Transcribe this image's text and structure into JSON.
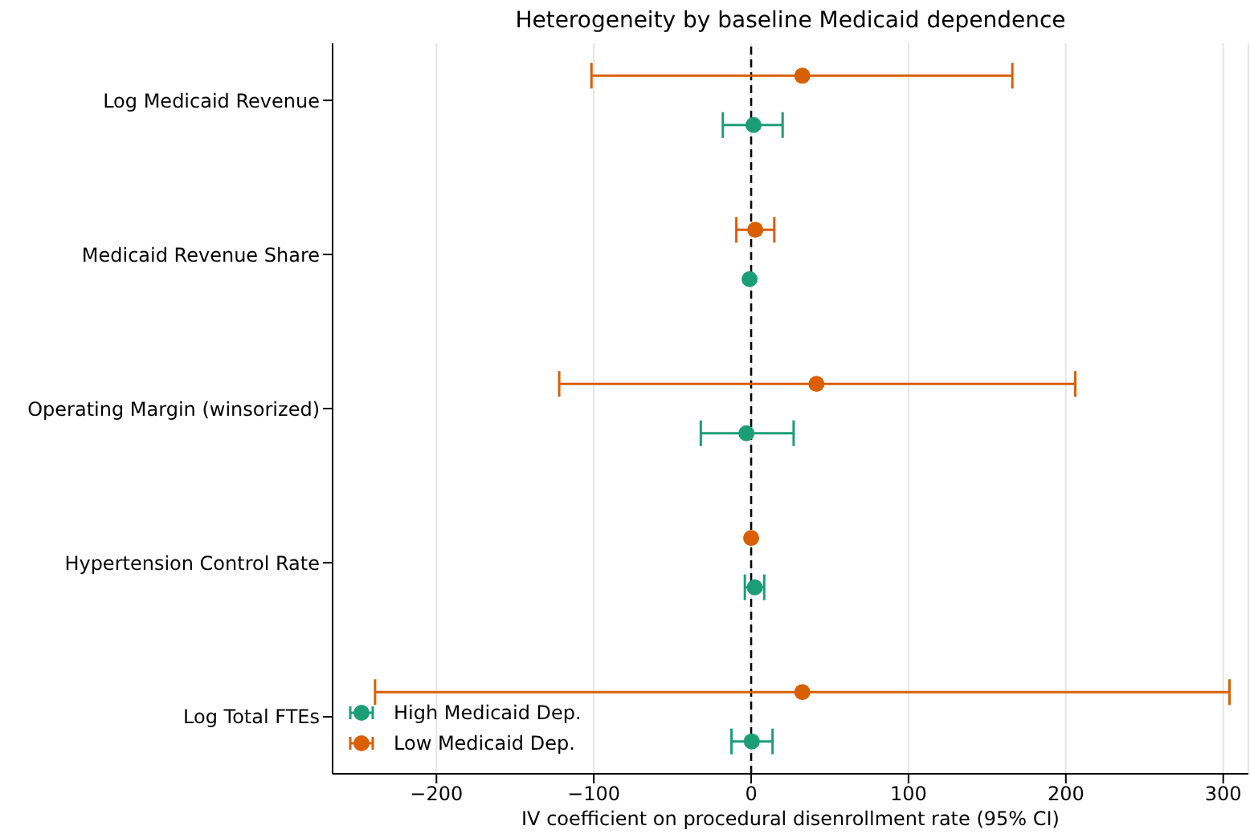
{
  "chart_data": {
    "type": "scatter",
    "title": "Heterogeneity by baseline Medicaid dependence",
    "xlabel": "IV coefficient on procedural disenrollment rate (95% CI)",
    "categories": [
      "Log Medicaid Revenue",
      "Medicaid Revenue Share",
      "Operating Margin (winsorized)",
      "Hypertension Control Rate",
      "Log Total FTEs"
    ],
    "orientation": "horizontal",
    "series": [
      {
        "name": "High Medicaid Dep.",
        "color": "#1b9e77",
        "values": [
          1.5,
          -1,
          -3,
          2.3,
          0.4
        ],
        "errors": [
          [
            -18,
            20
          ],
          null,
          [
            -32,
            27
          ],
          [
            -4,
            8.3
          ],
          [
            -12.5,
            13.6
          ]
        ]
      },
      {
        "name": "Low Medicaid Dep.",
        "color": "#d95f02",
        "values": [
          32.5,
          2.6,
          41.5,
          0,
          32.5
        ],
        "errors": [
          [
            -101.5,
            166
          ],
          [
            -9.4,
            14.7
          ],
          [
            -122,
            206
          ],
          null,
          [
            -239,
            304
          ]
        ]
      }
    ],
    "xlim": [
      -266,
      316
    ],
    "xticks": [
      {
        "value": -200,
        "label": "−200"
      },
      {
        "value": -100,
        "label": "−100"
      },
      0,
      100,
      200,
      300
    ],
    "ref_lines": [
      {
        "axis": "x",
        "value": 0,
        "color": "#000000",
        "line_style": "dashed"
      }
    ],
    "grid": "x",
    "legend": "bottom left",
    "marker": "circle"
  }
}
